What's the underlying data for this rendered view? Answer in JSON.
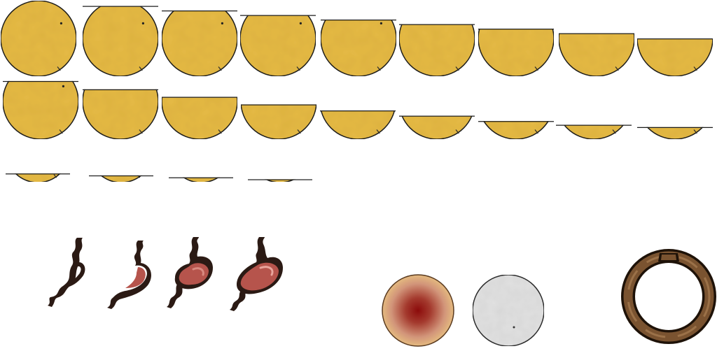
{
  "sprite_sheet": {
    "fill_frames": {
      "count": 22,
      "fill_fraction": [
        1.0,
        0.93,
        0.87,
        0.81,
        0.75,
        0.69,
        0.63,
        0.57,
        0.5,
        0.77,
        0.66,
        0.56,
        0.46,
        0.38,
        0.31,
        0.24,
        0.19,
        0.16,
        0.14,
        0.11,
        0.08,
        0.05
      ],
      "color": "#e5ba45",
      "edge_color": "#1c1c1c"
    },
    "stomach_icons": {
      "count": 4,
      "stages": [
        "empty",
        "low",
        "medium",
        "full"
      ],
      "color": "#b6544c",
      "outline_color": "#2b1a14"
    },
    "badge_backgrounds": [
      {
        "name": "red-glow",
        "center_color": "#8c0b0b",
        "edge_color": "#e4ba7f"
      },
      {
        "name": "grey-paper",
        "color": "#e1e1e1"
      }
    ],
    "frame_ring": {
      "color": "#7a5330",
      "outline_color": "#1e1208"
    }
  }
}
